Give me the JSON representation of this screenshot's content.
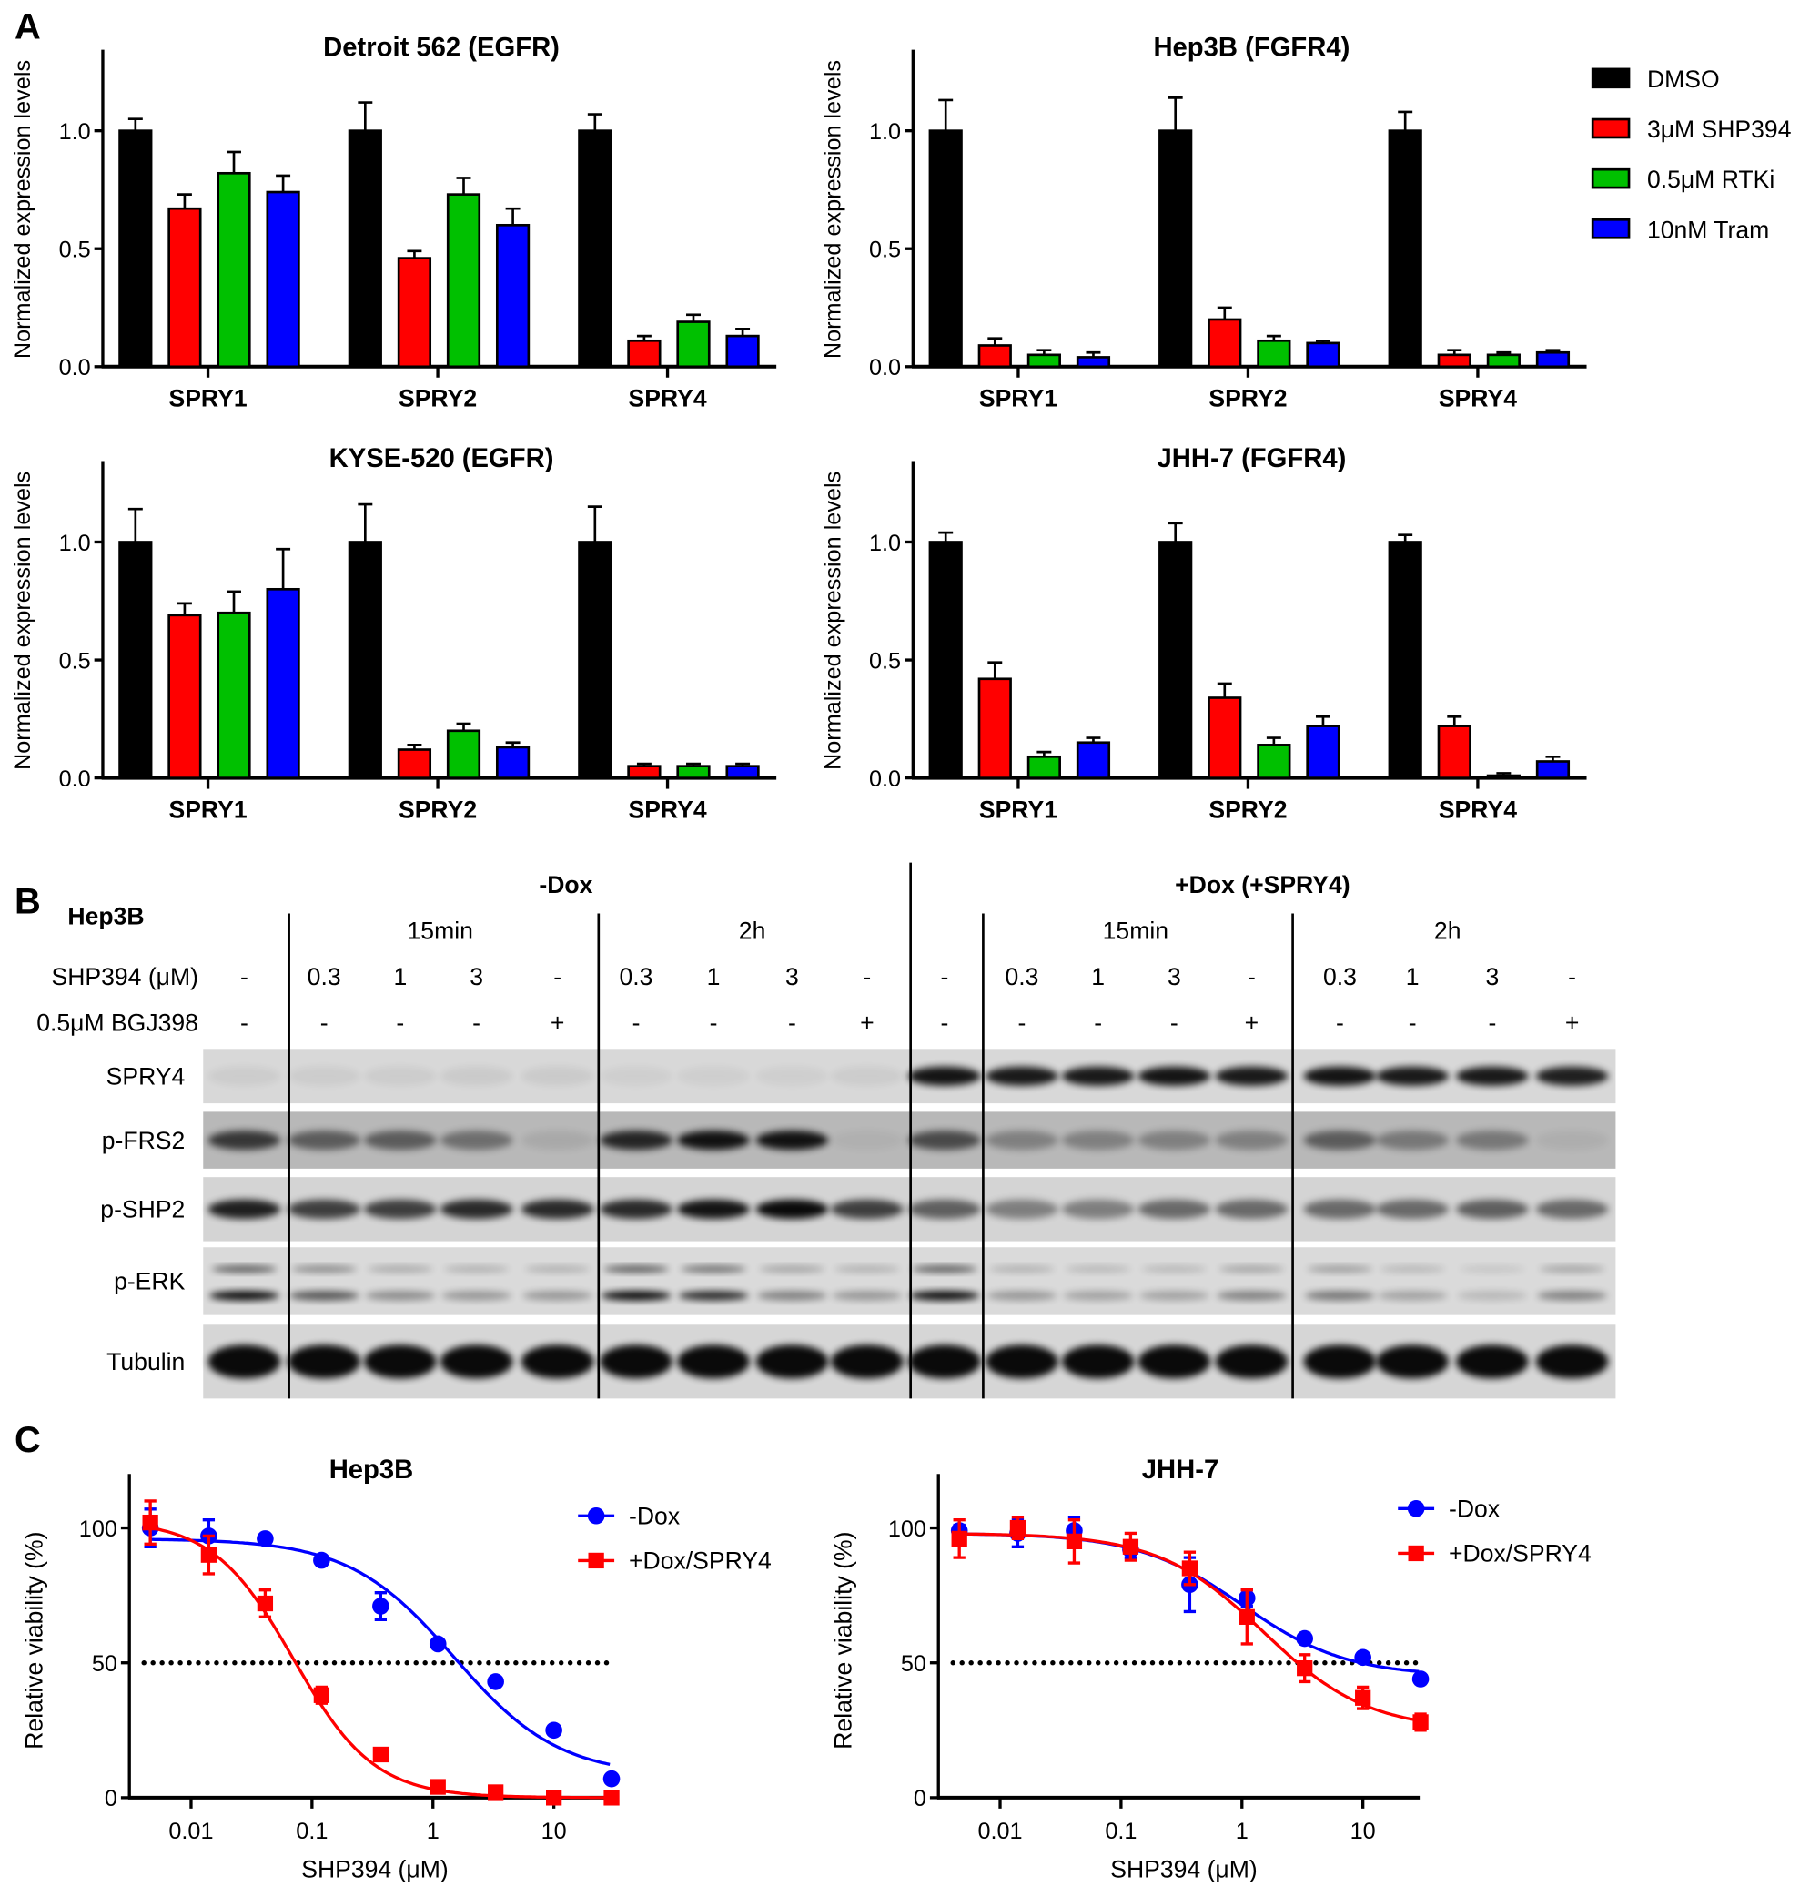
{
  "panel_labels": {
    "a": "A",
    "b": "B",
    "c": "C"
  },
  "colors": {
    "DMSO": "#000000",
    "SHP394": "#ff0000",
    "RTKi": "#00c000",
    "Tram": "#0000ff",
    "minus_dox": "#0000ff",
    "plus_dox": "#ff0000"
  },
  "panel_a_legend": [
    "DMSO",
    "3μM SHP394",
    "0.5μM RTKi",
    "10nM Tram"
  ],
  "chart_data": [
    {
      "type": "bar",
      "title": "Detroit 562 (EGFR)",
      "ylabel": "Normalized expression levels",
      "ylim": [
        0,
        1.3
      ],
      "yticks": [
        "0.0",
        "0.5",
        "1.0"
      ],
      "categories": [
        "SPRY1",
        "SPRY2",
        "SPRY4"
      ],
      "series": [
        {
          "name": "DMSO",
          "values": [
            1.0,
            1.0,
            1.0
          ],
          "err": [
            0.05,
            0.12,
            0.07
          ]
        },
        {
          "name": "3μM SHP394",
          "values": [
            0.67,
            0.46,
            0.11
          ],
          "err": [
            0.06,
            0.03,
            0.02
          ]
        },
        {
          "name": "0.5μM RTKi",
          "values": [
            0.82,
            0.73,
            0.19
          ],
          "err": [
            0.09,
            0.07,
            0.03
          ]
        },
        {
          "name": "10nM Tram",
          "values": [
            0.74,
            0.6,
            0.13
          ],
          "err": [
            0.07,
            0.07,
            0.03
          ]
        }
      ]
    },
    {
      "type": "bar",
      "title": "Hep3B (FGFR4)",
      "ylabel": "Normalized expression levels",
      "ylim": [
        0,
        1.3
      ],
      "yticks": [
        "0.0",
        "0.5",
        "1.0"
      ],
      "categories": [
        "SPRY1",
        "SPRY2",
        "SPRY4"
      ],
      "series": [
        {
          "name": "DMSO",
          "values": [
            1.0,
            1.0,
            1.0
          ],
          "err": [
            0.13,
            0.14,
            0.08
          ]
        },
        {
          "name": "3μM SHP394",
          "values": [
            0.09,
            0.2,
            0.05
          ],
          "err": [
            0.03,
            0.05,
            0.02
          ]
        },
        {
          "name": "0.5μM RTKi",
          "values": [
            0.05,
            0.11,
            0.05
          ],
          "err": [
            0.02,
            0.02,
            0.01
          ]
        },
        {
          "name": "10nM Tram",
          "values": [
            0.04,
            0.1,
            0.06
          ],
          "err": [
            0.02,
            0.01,
            0.01
          ]
        }
      ]
    },
    {
      "type": "bar",
      "title": "KYSE-520 (EGFR)",
      "ylabel": "Normalized expression levels",
      "ylim": [
        0,
        1.3
      ],
      "yticks": [
        "0.0",
        "0.5",
        "1.0"
      ],
      "categories": [
        "SPRY1",
        "SPRY2",
        "SPRY4"
      ],
      "series": [
        {
          "name": "DMSO",
          "values": [
            1.0,
            1.0,
            1.0
          ],
          "err": [
            0.14,
            0.16,
            0.15
          ]
        },
        {
          "name": "3μM SHP394",
          "values": [
            0.69,
            0.12,
            0.05
          ],
          "err": [
            0.05,
            0.02,
            0.01
          ]
        },
        {
          "name": "0.5μM RTKi",
          "values": [
            0.7,
            0.2,
            0.05
          ],
          "err": [
            0.09,
            0.03,
            0.01
          ]
        },
        {
          "name": "10nM Tram",
          "values": [
            0.8,
            0.13,
            0.05
          ],
          "err": [
            0.17,
            0.02,
            0.01
          ]
        }
      ]
    },
    {
      "type": "bar",
      "title": "JHH-7 (FGFR4)",
      "ylabel": "Normalized expression levels",
      "ylim": [
        0,
        1.3
      ],
      "yticks": [
        "0.0",
        "0.5",
        "1.0"
      ],
      "categories": [
        "SPRY1",
        "SPRY2",
        "SPRY4"
      ],
      "series": [
        {
          "name": "DMSO",
          "values": [
            1.0,
            1.0,
            1.0
          ],
          "err": [
            0.04,
            0.08,
            0.03
          ]
        },
        {
          "name": "3μM SHP394",
          "values": [
            0.42,
            0.34,
            0.22
          ],
          "err": [
            0.07,
            0.06,
            0.04
          ]
        },
        {
          "name": "0.5μM RTKi",
          "values": [
            0.09,
            0.14,
            0.01
          ],
          "err": [
            0.02,
            0.03,
            0.01
          ]
        },
        {
          "name": "10nM Tram",
          "values": [
            0.15,
            0.22,
            0.07
          ],
          "err": [
            0.02,
            0.04,
            0.02
          ]
        }
      ]
    },
    {
      "type": "scatter",
      "title": "Hep3B",
      "xlabel": "SHP394 (μM)",
      "ylabel": "Relative viability (%)",
      "xscale": "log",
      "xlim": [
        0.003,
        30
      ],
      "ylim": [
        0,
        120
      ],
      "xticks": [
        "0.01",
        "0.1",
        "1",
        "10"
      ],
      "yticks": [
        "0",
        "50",
        "100"
      ],
      "reference_line": 50,
      "legend": "top-right",
      "x": [
        0.0046,
        0.014,
        0.041,
        0.12,
        0.37,
        1.1,
        3.3,
        10,
        30
      ],
      "series": [
        {
          "name": "-Dox",
          "marker": "circle",
          "values": [
            100,
            97,
            96,
            88,
            71,
            57,
            43,
            25,
            7
          ],
          "err": [
            7,
            6,
            1,
            1,
            5,
            1,
            1,
            1,
            1
          ],
          "fit": {
            "top": 96,
            "bottom": 8,
            "ic50": 1.5,
            "hill": 1.0
          }
        },
        {
          "name": "+Dox/SPRY4",
          "marker": "square",
          "values": [
            102,
            90,
            72,
            38,
            16,
            4,
            2,
            0,
            0
          ],
          "err": [
            8,
            7,
            5,
            3,
            1,
            1,
            1,
            1,
            1
          ],
          "fit": {
            "top": 103,
            "bottom": 0,
            "ic50": 0.07,
            "hill": 1.3
          }
        }
      ]
    },
    {
      "type": "scatter",
      "title": "JHH-7",
      "xlabel": "SHP394 (μM)",
      "ylabel": "Relative viability (%)",
      "xscale": "log",
      "xlim": [
        0.003,
        30
      ],
      "ylim": [
        0,
        120
      ],
      "xticks": [
        "0.01",
        "0.1",
        "1",
        "10"
      ],
      "yticks": [
        "0",
        "50",
        "100"
      ],
      "reference_line": 50,
      "legend": "top-right",
      "x": [
        0.0046,
        0.014,
        0.041,
        0.12,
        0.37,
        1.1,
        3.3,
        10,
        30
      ],
      "series": [
        {
          "name": "-Dox",
          "marker": "circle",
          "values": [
            99,
            98,
            99,
            92,
            79,
            74,
            59,
            52,
            44
          ],
          "err": [
            2,
            5,
            5,
            3,
            10,
            3,
            2,
            1,
            1
          ],
          "fit": {
            "top": 98,
            "bottom": 45,
            "ic50": 1.0,
            "hill": 1.0
          }
        },
        {
          "name": "+Dox/SPRY4",
          "marker": "square",
          "values": [
            96,
            100,
            95,
            93,
            85,
            67,
            48,
            37,
            28
          ],
          "err": [
            7,
            4,
            8,
            5,
            6,
            10,
            5,
            4,
            3
          ],
          "fit": {
            "top": 98,
            "bottom": 25,
            "ic50": 1.5,
            "hill": 1.0
          }
        }
      ]
    }
  ],
  "blot": {
    "cell_line": "Hep3B",
    "condition_headers": [
      "-Dox",
      "+Dox (+SPRY4)"
    ],
    "time_headers": [
      "15min",
      "2h",
      "15min",
      "2h"
    ],
    "row_labels": [
      "SHP394 (μM)",
      "0.5μM BGJ398"
    ],
    "shp394": [
      "-",
      "0.3",
      "1",
      "3",
      "-",
      "0.3",
      "1",
      "3",
      "-",
      "-",
      "0.3",
      "1",
      "3",
      "-",
      "0.3",
      "1",
      "3",
      "-"
    ],
    "bgj398": [
      "-",
      "-",
      "-",
      "-",
      "+",
      "-",
      "-",
      "-",
      "+",
      "-",
      "-",
      "-",
      "-",
      "+",
      "-",
      "-",
      "-",
      "+"
    ],
    "proteins": [
      {
        "label": "SPRY4",
        "bands": [
          0.05,
          0.05,
          0.05,
          0.06,
          0.06,
          0.04,
          0.04,
          0.04,
          0.05,
          0.9,
          0.88,
          0.88,
          0.9,
          0.88,
          0.9,
          0.88,
          0.88,
          0.85
        ]
      },
      {
        "label": "p-FRS2",
        "bands": [
          0.7,
          0.5,
          0.5,
          0.4,
          0.08,
          0.8,
          0.9,
          0.9,
          0.04,
          0.6,
          0.3,
          0.3,
          0.3,
          0.3,
          0.5,
          0.35,
          0.35,
          0.05
        ]
      },
      {
        "label": "p-SHP2",
        "bands": [
          0.85,
          0.7,
          0.7,
          0.8,
          0.8,
          0.8,
          0.9,
          0.95,
          0.7,
          0.55,
          0.4,
          0.4,
          0.5,
          0.5,
          0.5,
          0.5,
          0.55,
          0.5
        ]
      },
      {
        "label": "p-ERK",
        "bands": [
          0.95,
          0.6,
          0.35,
          0.3,
          0.3,
          0.95,
          0.8,
          0.4,
          0.3,
          0.95,
          0.3,
          0.25,
          0.25,
          0.4,
          0.45,
          0.25,
          0.15,
          0.4
        ]
      },
      {
        "label": "Tubulin",
        "bands": [
          0.95,
          0.95,
          0.95,
          0.95,
          0.95,
          0.95,
          0.95,
          0.95,
          0.95,
          0.95,
          0.95,
          0.95,
          0.95,
          0.95,
          0.95,
          0.95,
          0.95,
          0.95
        ]
      }
    ]
  }
}
